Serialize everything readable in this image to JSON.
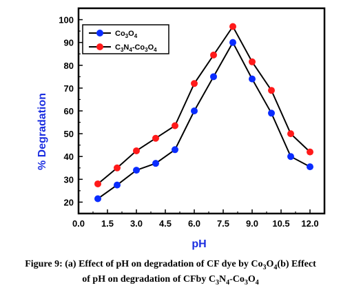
{
  "chart_data": {
    "type": "line",
    "xlabel": "pH",
    "ylabel": "% Degradation",
    "xlim": [
      0.0,
      12.75
    ],
    "ylim": [
      15,
      105
    ],
    "x_ticks": [
      "0.0",
      "1.5",
      "3.0",
      "4.5",
      "6.0",
      "7.5",
      "9.0",
      "10.5",
      "12.0"
    ],
    "x_tick_values": [
      0,
      1.5,
      3,
      4.5,
      6,
      7.5,
      9,
      10.5,
      12
    ],
    "y_ticks": [
      "20",
      "30",
      "40",
      "50",
      "60",
      "70",
      "80",
      "90",
      "100"
    ],
    "y_tick_values": [
      20,
      30,
      40,
      50,
      60,
      70,
      80,
      90,
      100
    ],
    "grid": false,
    "legend_position": "top-left",
    "series": [
      {
        "name": "Co3O4",
        "color": "#0a2cff",
        "x": [
          1,
          2,
          3,
          4,
          5,
          6,
          7,
          8,
          9,
          10,
          11,
          12
        ],
        "values": [
          21.5,
          27.5,
          34,
          37,
          43,
          60,
          75,
          90,
          74,
          59,
          40,
          35.5
        ]
      },
      {
        "name": "C3N4-Co3O4",
        "color": "#ff1a1a",
        "x": [
          1,
          2,
          3,
          4,
          5,
          6,
          7,
          8,
          9,
          10,
          11,
          12
        ],
        "values": [
          28,
          35,
          42.5,
          48,
          53.5,
          72,
          84.5,
          97,
          81.5,
          69,
          50,
          42
        ]
      }
    ]
  },
  "legend": {
    "co3o4": [
      "Co",
      "3",
      "O",
      "4"
    ],
    "c3n4co3o4": [
      "C",
      "3",
      "N",
      "4",
      "-Co",
      "3",
      "O",
      "4"
    ]
  },
  "caption": {
    "line1_prefix": "Figure 9: (a) Effect of pH on degradation of CF dye by Co",
    "line1_sub1": "3",
    "line1_mid": "O",
    "line1_sub2": "4",
    "line1_suffix": "(b) Effect",
    "line2_prefix": "of pH on degradation of CFby C",
    "line2_sub1": "3",
    "line2_mid1": "N",
    "line2_sub2": "4",
    "line2_mid2": "-Co",
    "line2_sub3": "3",
    "line2_mid3": "O",
    "line2_sub4": "4"
  }
}
